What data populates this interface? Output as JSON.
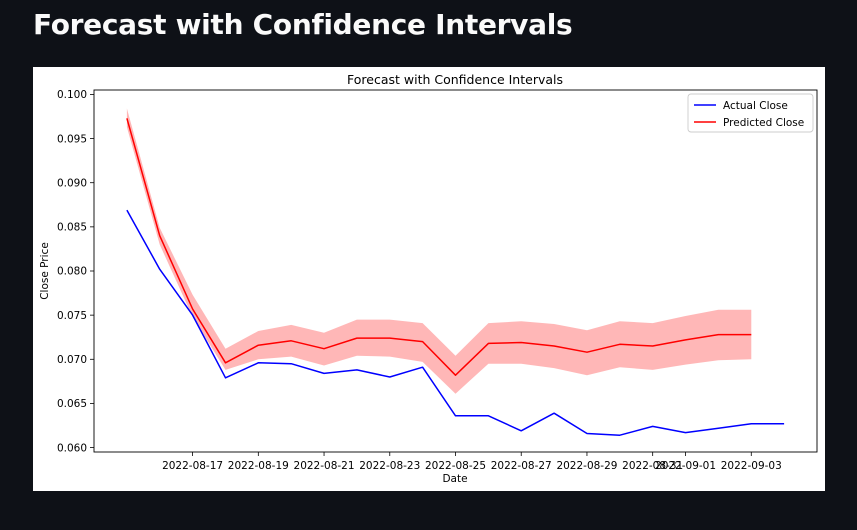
{
  "page": {
    "title": "Forecast with Confidence Intervals"
  },
  "chart_data": {
    "type": "line",
    "title": "Forecast with Confidence Intervals",
    "xlabel": "Date",
    "ylabel": "Close Price",
    "xlim": [
      "2022-08-14",
      "2022-09-05"
    ],
    "ylim": [
      0.0595,
      0.1005
    ],
    "yticks": [
      "0.060",
      "0.065",
      "0.070",
      "0.075",
      "0.080",
      "0.085",
      "0.090",
      "0.095",
      "0.100"
    ],
    "xticks": [
      "2022-08-17",
      "2022-08-19",
      "2022-08-21",
      "2022-08-23",
      "2022-08-25",
      "2022-08-27",
      "2022-08-29",
      "2022-08-31",
      "2022-09-01",
      "2022-09-03"
    ],
    "legend": "top-right",
    "grid": false,
    "series": [
      {
        "name": "Actual Close",
        "color": "#0000ff",
        "x": [
          "2022-08-15",
          "2022-08-16",
          "2022-08-17",
          "2022-08-18",
          "2022-08-19",
          "2022-08-20",
          "2022-08-21",
          "2022-08-22",
          "2022-08-23",
          "2022-08-24",
          "2022-08-25",
          "2022-08-26",
          "2022-08-27",
          "2022-08-28",
          "2022-08-29",
          "2022-08-30",
          "2022-08-31",
          "2022-09-01",
          "2022-09-02",
          "2022-09-03",
          "2022-09-04"
        ],
        "values": [
          0.0869,
          0.0802,
          0.075,
          0.0679,
          0.0696,
          0.0695,
          0.0684,
          0.0688,
          0.068,
          0.0691,
          0.0636,
          0.0636,
          0.0619,
          0.0639,
          0.0616,
          0.0614,
          0.0624,
          0.0617,
          0.0622,
          0.0627,
          0.0627
        ]
      },
      {
        "name": "Predicted Close",
        "color": "#ff0000",
        "x": [
          "2022-08-15",
          "2022-08-16",
          "2022-08-17",
          "2022-08-18",
          "2022-08-19",
          "2022-08-20",
          "2022-08-21",
          "2022-08-22",
          "2022-08-23",
          "2022-08-24",
          "2022-08-25",
          "2022-08-26",
          "2022-08-27",
          "2022-08-28",
          "2022-08-29",
          "2022-08-30",
          "2022-08-31",
          "2022-09-01",
          "2022-09-02",
          "2022-09-03"
        ],
        "values": [
          0.0973,
          0.084,
          0.0757,
          0.0696,
          0.0716,
          0.0721,
          0.0712,
          0.0724,
          0.0724,
          0.072,
          0.0682,
          0.0718,
          0.0719,
          0.0715,
          0.0708,
          0.0717,
          0.0715,
          0.0722,
          0.0728,
          0.0728
        ],
        "lower": [
          0.0963,
          0.083,
          0.0748,
          0.0688,
          0.07,
          0.0703,
          0.0693,
          0.0704,
          0.0703,
          0.0697,
          0.0661,
          0.0695,
          0.0695,
          0.069,
          0.0682,
          0.0691,
          0.0688,
          0.0694,
          0.0699,
          0.07
        ],
        "upper": [
          0.0984,
          0.0849,
          0.0773,
          0.0712,
          0.0732,
          0.0739,
          0.073,
          0.0745,
          0.0745,
          0.0741,
          0.0704,
          0.0741,
          0.0743,
          0.074,
          0.0733,
          0.0743,
          0.0741,
          0.0749,
          0.0756,
          0.0756
        ]
      }
    ],
    "band": {
      "color": "#ffb3b3",
      "series": "Predicted Close"
    }
  }
}
